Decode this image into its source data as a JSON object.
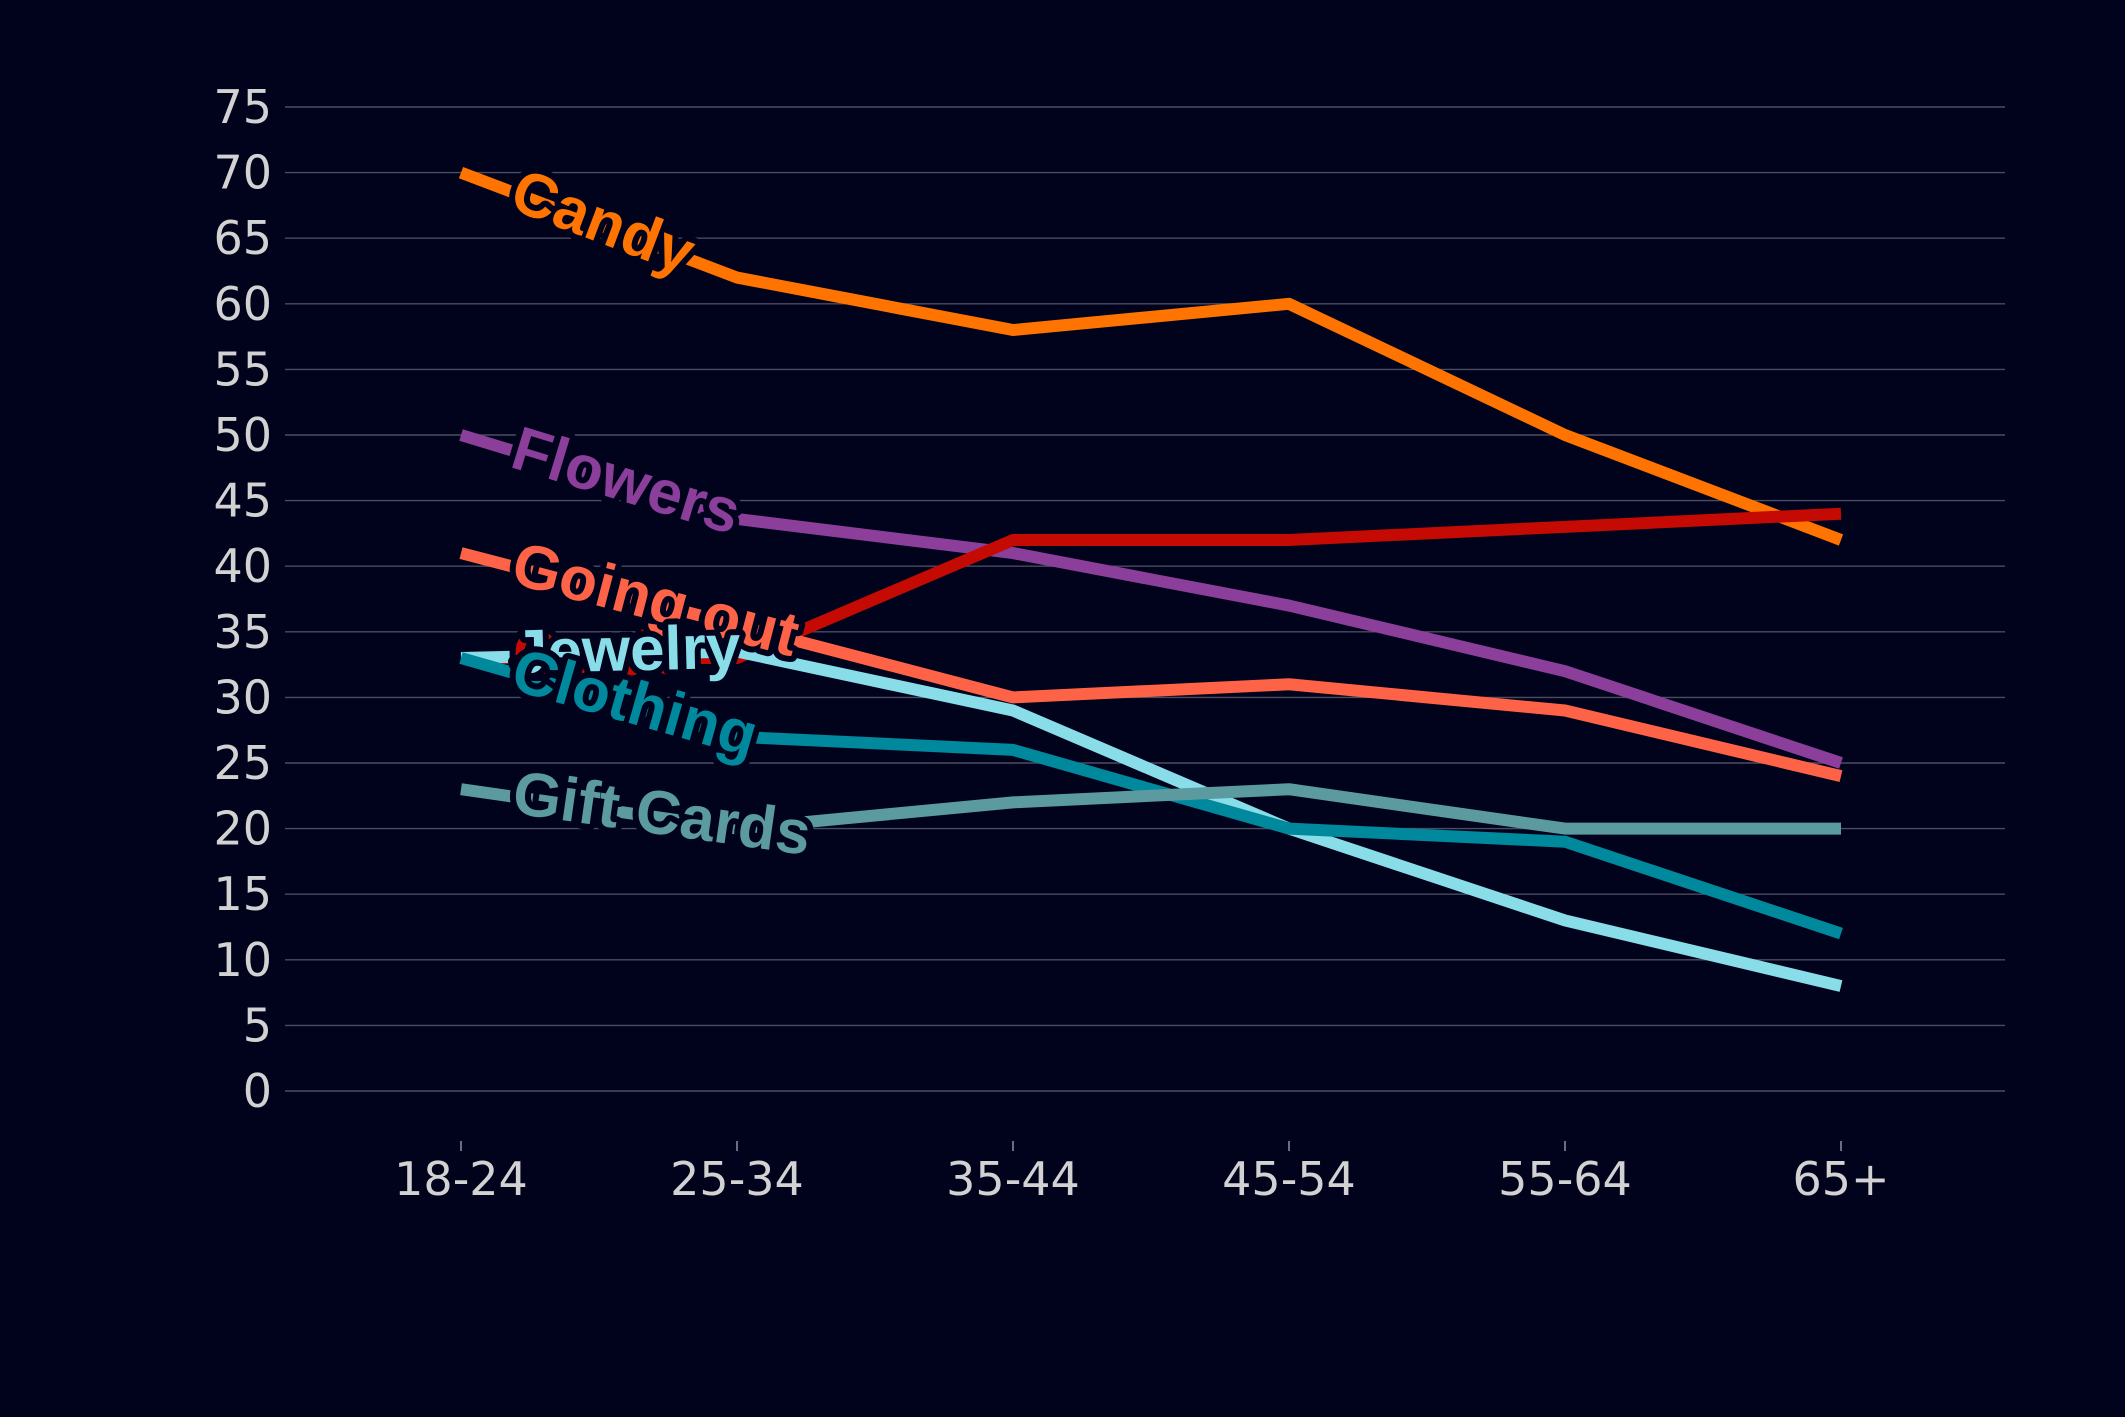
{
  "chart_data": {
    "type": "line",
    "title": "",
    "xlabel": "",
    "ylabel": "",
    "categories": [
      "18-24",
      "25-34",
      "35-44",
      "45-54",
      "55-64",
      "65+"
    ],
    "ylim": [
      0,
      75
    ],
    "yticks": [
      0,
      5,
      10,
      15,
      20,
      25,
      30,
      35,
      40,
      45,
      50,
      55,
      60,
      65,
      70,
      75
    ],
    "grid": true,
    "legend": "inline labels on lines",
    "series": [
      {
        "name": "Candy",
        "color": "#ff7400",
        "values": [
          70,
          62,
          58,
          60,
          50,
          42
        ]
      },
      {
        "name": "Flowers",
        "color": "#8b3f9a",
        "values": [
          50,
          43.6,
          41,
          37,
          32,
          25
        ]
      },
      {
        "name": "Cards",
        "color": "#c40a02",
        "values": [
          33,
          33,
          42,
          42,
          43,
          44
        ]
      },
      {
        "name": "Going out",
        "color": "#ff6347",
        "values": [
          41,
          35.5,
          30,
          31,
          29,
          24
        ]
      },
      {
        "name": "Jewelry",
        "color": "#88dde9",
        "values": [
          33,
          33.5,
          29,
          20,
          13,
          8
        ]
      },
      {
        "name": "Clothing",
        "color": "#00889c",
        "values": [
          33,
          27,
          26,
          20,
          19,
          12
        ]
      },
      {
        "name": "Gift Cards",
        "color": "#5b9a9e",
        "values": [
          23,
          20,
          22,
          23,
          20,
          20
        ]
      }
    ]
  }
}
